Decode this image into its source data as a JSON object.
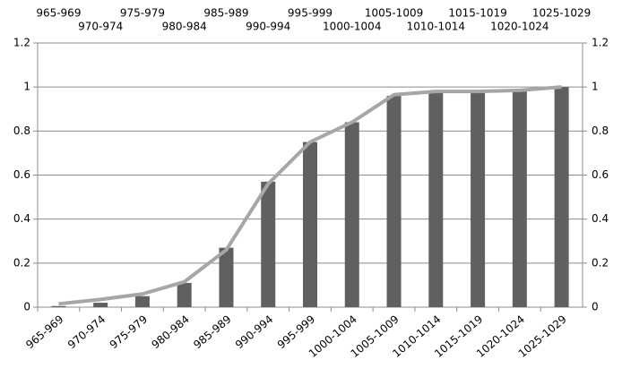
{
  "chart_data": {
    "type": "bar",
    "categories": [
      "965-969",
      "970-974",
      "975-979",
      "980-984",
      "985-989",
      "990-994",
      "995-999",
      "1000-1004",
      "1005-1009",
      "1010-1014",
      "1015-1019",
      "1020-1024",
      "1025-1029"
    ],
    "series": [
      {
        "type": "bar",
        "color": "#606060",
        "values": [
          0.005,
          0.02,
          0.05,
          0.11,
          0.27,
          0.57,
          0.75,
          0.84,
          0.96,
          0.98,
          0.98,
          0.99,
          1.0
        ]
      },
      {
        "type": "line",
        "color": "#a6a6a6",
        "values": [
          0.015,
          0.035,
          0.06,
          0.115,
          0.26,
          0.56,
          0.75,
          0.84,
          0.965,
          0.98,
          0.98,
          0.985,
          1.0
        ]
      }
    ],
    "ylim": [
      0,
      1.2
    ],
    "yticks": [
      0,
      0.2,
      0.4,
      0.6,
      0.8,
      1,
      1.2
    ],
    "grid": true
  }
}
